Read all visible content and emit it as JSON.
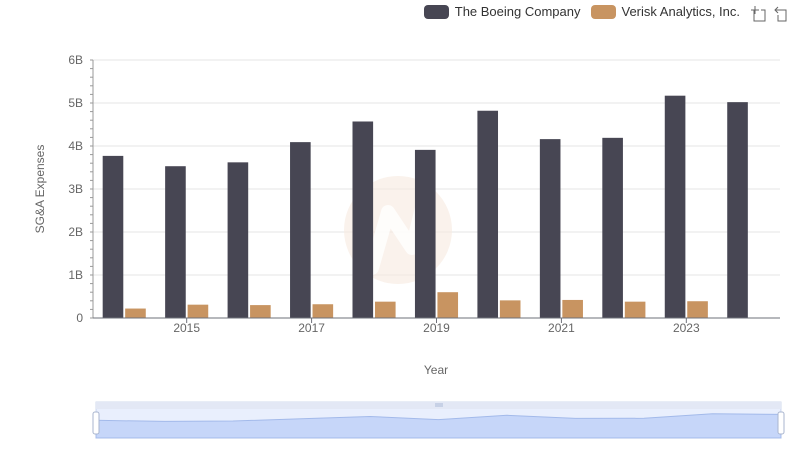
{
  "chart_data": {
    "type": "bar",
    "xlabel": "Year",
    "ylabel": "SG&A Expenses",
    "x": [
      2014,
      2015,
      2016,
      2017,
      2018,
      2019,
      2020,
      2021,
      2022,
      2023,
      2024
    ],
    "x_tick_labels": [
      "2015",
      "2017",
      "2019",
      "2021",
      "2023"
    ],
    "y_tick_labels": [
      "0",
      "1B",
      "2B",
      "3B",
      "4B",
      "5B",
      "6B"
    ],
    "ylim": [
      0,
      6000000000
    ],
    "series": [
      {
        "name": "The Boeing Company",
        "color": "#474653",
        "values": [
          3770000000,
          3530000000,
          3620000000,
          4090000000,
          4570000000,
          3910000000,
          4820000000,
          4160000000,
          4190000000,
          5170000000,
          5020000000
        ]
      },
      {
        "name": "Verisk Analytics, Inc.",
        "color": "#C89461",
        "values": [
          220000000,
          310000000,
          300000000,
          320000000,
          380000000,
          600000000,
          410000000,
          420000000,
          380000000,
          390000000,
          null
        ]
      }
    ],
    "legend_position": "top-right",
    "grid": true
  },
  "toolbox": {
    "zoom_icon": "zoom-icon",
    "reset_icon": "reset-zoom-icon"
  }
}
